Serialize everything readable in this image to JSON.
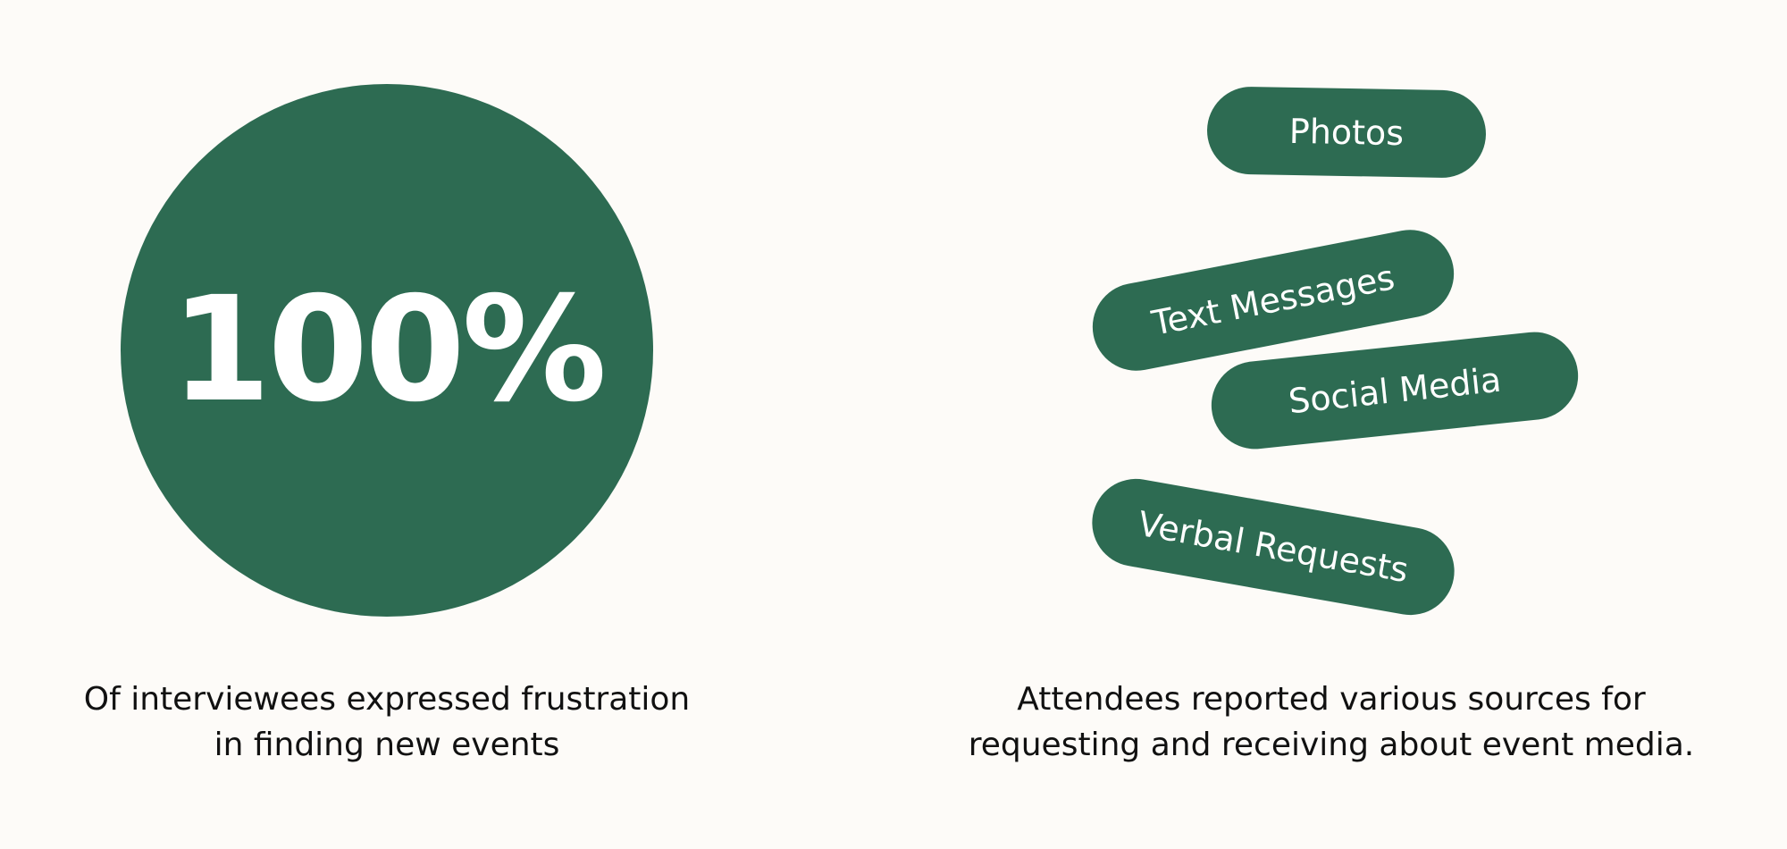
{
  "stat": {
    "value": "100%",
    "caption_lines": [
      "Of interviewees expressed frustration",
      "in finding new events"
    ]
  },
  "sources": {
    "pills": [
      {
        "label": "Photos"
      },
      {
        "label": "Text Messages"
      },
      {
        "label": "Social Media"
      },
      {
        "label": "Verbal Requests"
      }
    ],
    "caption_lines": [
      "Attendees reported various sources for",
      "requesting and receiving about event media."
    ]
  },
  "colors": {
    "accent": "#2d6b52",
    "background": "#fdfbf8",
    "text": "#111111"
  }
}
